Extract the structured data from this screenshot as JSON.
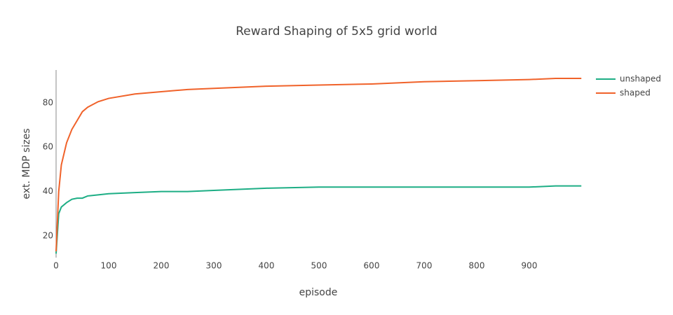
{
  "chart_data": {
    "type": "line",
    "title": "Reward Shaping of 5x5 grid world",
    "x_label": "episode",
    "y_label": "ext. MDP sizes",
    "x": [
      0,
      5,
      10,
      20,
      30,
      40,
      50,
      60,
      80,
      100,
      150,
      200,
      250,
      300,
      400,
      500,
      600,
      700,
      800,
      900,
      950,
      999
    ],
    "series": [
      {
        "name": "unshaped",
        "color": "#1dae85",
        "values": [
          12,
          30,
          33,
          35,
          36.5,
          37,
          37,
          38,
          38.5,
          39,
          39.5,
          40,
          40,
          40.5,
          41.5,
          42,
          42,
          42,
          42,
          42,
          42.5,
          42.5
        ]
      },
      {
        "name": "shaped",
        "color": "#f0622a",
        "values": [
          13,
          40,
          52,
          62,
          68,
          72,
          76,
          78,
          80.5,
          82,
          84,
          85,
          86,
          86.5,
          87.5,
          88,
          88.5,
          89.5,
          90,
          90.5,
          91,
          91
        ]
      }
    ],
    "xlim": [
      0,
      1000
    ],
    "xticks": [
      0,
      100,
      200,
      300,
      400,
      500,
      600,
      700,
      800,
      900
    ],
    "ylim": [
      10.2,
      94.8
    ],
    "yticks": [
      20,
      40,
      60,
      80
    ],
    "grid": false,
    "legend": "top-right"
  }
}
